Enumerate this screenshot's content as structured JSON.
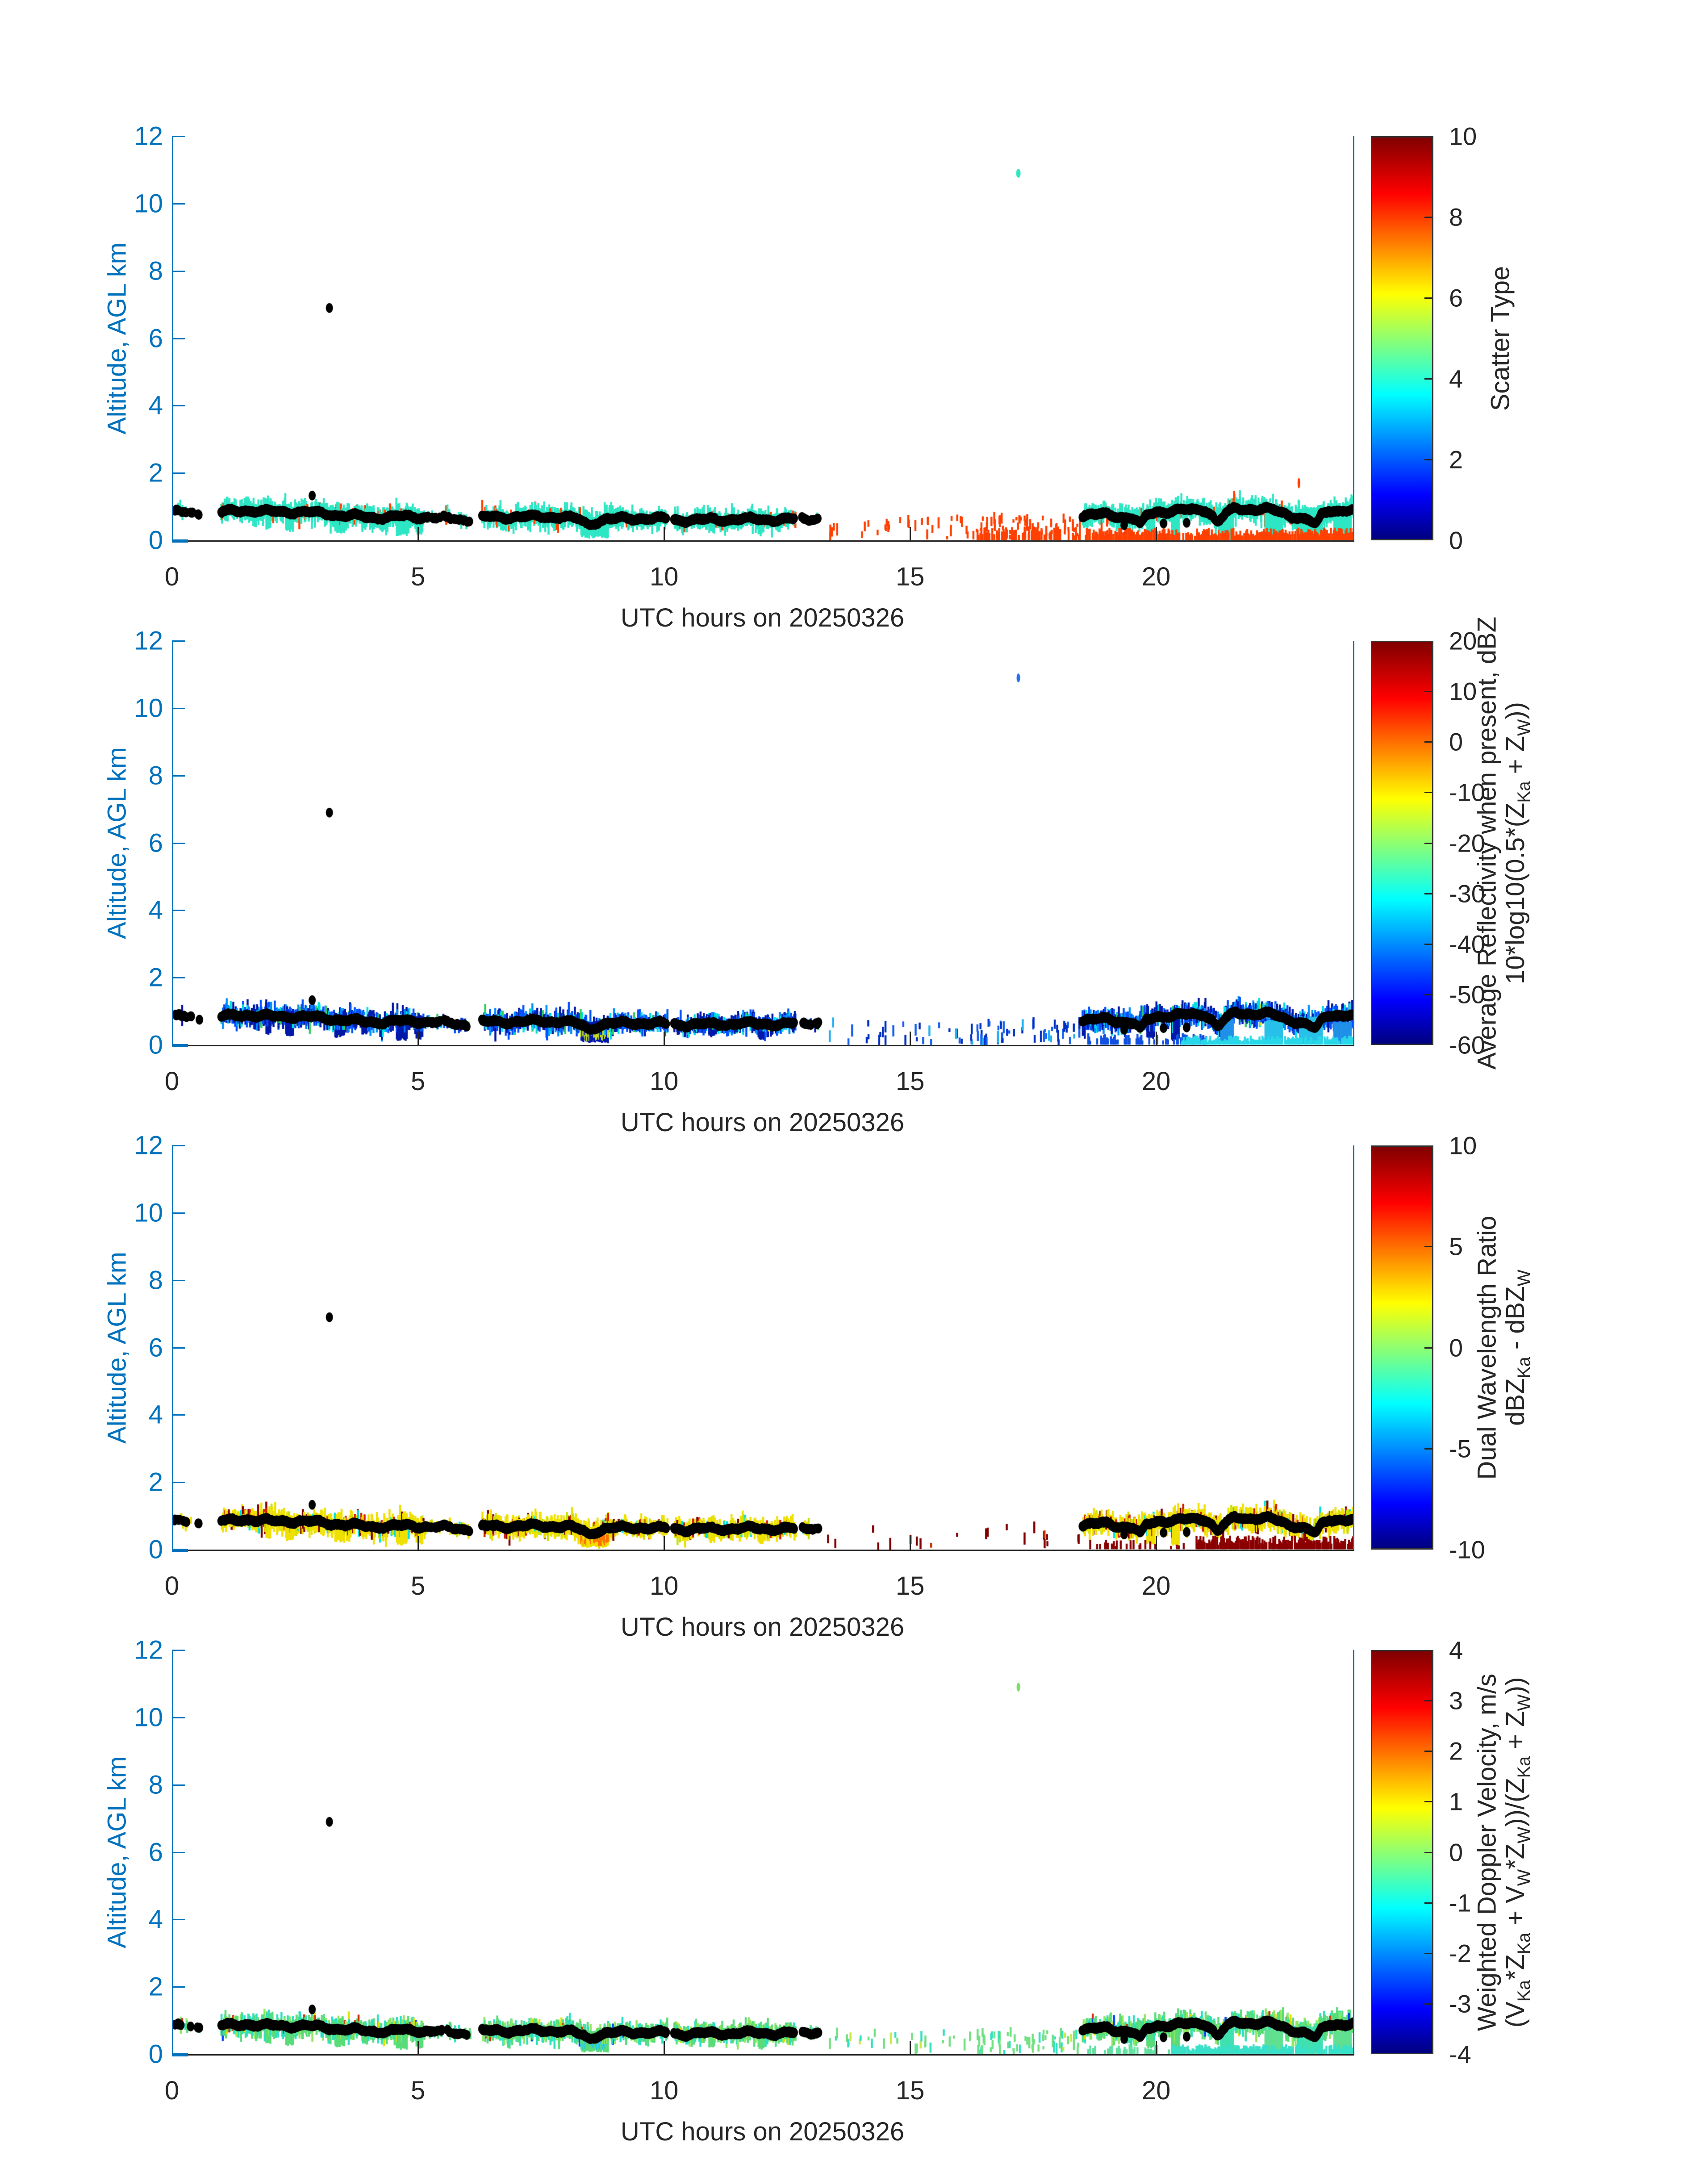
{
  "figure": {
    "background": "#ffffff",
    "title": ""
  },
  "colors": {
    "axis_blue": "#0072BD",
    "text_dark": "#262626",
    "jet_stops": [
      "#000080",
      "#0000FF",
      "#00FFFF",
      "#FFFF00",
      "#FF0000",
      "#800000"
    ]
  },
  "chart_data": [
    {
      "type": "scatter",
      "xlabel": "UTC hours on 20250326",
      "ylabel": "Altitude, AGL km",
      "xlim": [
        0,
        24
      ],
      "ylim": [
        0,
        12
      ],
      "x_ticks": [
        "0",
        "5",
        "10",
        "15",
        "20"
      ],
      "x_tick_values": [
        0,
        5,
        10,
        15,
        20
      ],
      "y_ticks": [
        "0",
        "2",
        "4",
        "6",
        "8",
        "10",
        "12"
      ],
      "y_tick_values": [
        0,
        2,
        4,
        6,
        8,
        10,
        12
      ],
      "grid": false,
      "colorbar": {
        "title_lines": [
          "Scatter Type"
        ],
        "min": 0,
        "max": 10,
        "ticks": [
          0,
          2,
          4,
          6,
          8,
          10
        ],
        "colormap": "jet"
      },
      "palette": [
        [
          "#2EE6C4",
          0.93
        ],
        [
          "#FF4000",
          0.07
        ]
      ],
      "sparse_palette": [
        [
          "#FF4000",
          1.0
        ]
      ],
      "sparse_density_scale": 1.2,
      "plume_core": null,
      "low_layers": [
        {
          "t0": 16.35,
          "t1": 18.45,
          "a0": 0,
          "a1": 0.42,
          "density": 0.5,
          "color": "#FF4000"
        },
        {
          "t0": 18.55,
          "t1": 24.0,
          "a0": 0,
          "a1": 0.38,
          "density": 0.8,
          "color": "#FF4000"
        }
      ],
      "tall_columns": [
        {
          "t0": 21.3,
          "t1": 21.55,
          "a1": 0.95,
          "color": "#2EE6C4"
        },
        {
          "t0": 22.2,
          "t1": 22.55,
          "a1": 0.85,
          "color": "#2EE6C4"
        },
        {
          "t0": 22.9,
          "t1": 23.35,
          "a1": 1.0,
          "color": "#2EE6C4"
        },
        {
          "t0": 23.6,
          "t1": 23.95,
          "a1": 0.8,
          "color": "#2EE6C4"
        }
      ],
      "outliers": [
        {
          "t": 3.2,
          "alt": 6.9,
          "color": "#000000",
          "rx": 8,
          "ry": 11
        },
        {
          "t": 17.2,
          "alt": 10.9,
          "color": "#2EE6C4",
          "rx": 5,
          "ry": 10
        },
        {
          "t": 2.85,
          "alt": 1.33,
          "color": "#000000",
          "rx": 8,
          "ry": 11
        },
        {
          "t": 22.9,
          "alt": 1.7,
          "color": "#FF4000",
          "rx": 3,
          "ry": 12
        }
      ]
    },
    {
      "type": "scatter",
      "xlabel": "UTC hours on 20250326",
      "ylabel": "Altitude, AGL km",
      "xlim": [
        0,
        24
      ],
      "ylim": [
        0,
        12
      ],
      "x_ticks": [
        "0",
        "5",
        "10",
        "15",
        "20"
      ],
      "x_tick_values": [
        0,
        5,
        10,
        15,
        20
      ],
      "y_ticks": [
        "0",
        "2",
        "4",
        "6",
        "8",
        "10",
        "12"
      ],
      "y_tick_values": [
        0,
        2,
        4,
        6,
        8,
        10,
        12
      ],
      "grid": false,
      "colorbar": {
        "title_lines": [
          "Average Reflectivity when present, dBZ",
          "10*log10(0.5*(Z_{Ka} + Z_{W}))"
        ],
        "min": -60,
        "max": 20,
        "ticks": [
          -60,
          -50,
          -40,
          -30,
          -20,
          -10,
          0,
          10,
          20
        ],
        "colormap": "jet"
      },
      "palette": [
        [
          "#0018A8",
          0.34
        ],
        [
          "#0050FF",
          0.3
        ],
        [
          "#0090FF",
          0.15
        ],
        [
          "#00E0E0",
          0.15
        ],
        [
          "#30D060",
          0.05
        ],
        [
          "#C8E020",
          0.01
        ]
      ],
      "sparse_palette": [
        [
          "#0030C0",
          0.5
        ],
        [
          "#1560F0",
          0.3
        ],
        [
          "#20B0F0",
          0.2
        ]
      ],
      "sparse_density_scale": 1.0,
      "plume_core": "#C8E020",
      "low_layers": [
        {
          "t0": 18.6,
          "t1": 21.0,
          "a0": 0,
          "a1": 0.35,
          "density": 0.5,
          "color": "#1050E0"
        },
        {
          "t0": 20.5,
          "t1": 24.0,
          "a0": 0,
          "a1": 0.28,
          "density": 0.85,
          "color": "#28D8E8"
        }
      ],
      "tall_columns": [
        {
          "t0": 21.3,
          "t1": 21.55,
          "a1": 0.8,
          "color": "#2090E8"
        },
        {
          "t0": 22.2,
          "t1": 22.55,
          "a1": 0.75,
          "color": "#28C0E8"
        },
        {
          "t0": 22.9,
          "t1": 23.35,
          "a1": 0.85,
          "color": "#28C0E8"
        },
        {
          "t0": 23.6,
          "t1": 23.95,
          "a1": 0.7,
          "color": "#2090E8"
        }
      ],
      "outliers": [
        {
          "t": 3.2,
          "alt": 6.9,
          "color": "#000000",
          "rx": 8,
          "ry": 11
        },
        {
          "t": 17.2,
          "alt": 10.9,
          "color": "#2070F0",
          "rx": 4,
          "ry": 10
        },
        {
          "t": 2.85,
          "alt": 1.33,
          "color": "#000000",
          "rx": 8,
          "ry": 11
        }
      ]
    },
    {
      "type": "scatter",
      "xlabel": "UTC hours on 20250326",
      "ylabel": "Altitude, AGL km",
      "xlim": [
        0,
        24
      ],
      "ylim": [
        0,
        12
      ],
      "x_ticks": [
        "0",
        "5",
        "10",
        "15",
        "20"
      ],
      "x_tick_values": [
        0,
        5,
        10,
        15,
        20
      ],
      "y_ticks": [
        "0",
        "2",
        "4",
        "6",
        "8",
        "10",
        "12"
      ],
      "y_tick_values": [
        0,
        2,
        4,
        6,
        8,
        10,
        12
      ],
      "grid": false,
      "colorbar": {
        "title_lines": [
          "Dual Wavelength Ratio",
          "dBZ_{Ka} - dBZ_{W}"
        ],
        "min": -10,
        "max": 10,
        "ticks": [
          -10,
          -5,
          0,
          5,
          10
        ],
        "colormap": "jet"
      },
      "palette": [
        [
          "#F0E000",
          0.72
        ],
        [
          "#C8E000",
          0.1
        ],
        [
          "#00E0E0",
          0.06
        ],
        [
          "#D02000",
          0.06
        ],
        [
          "#800000",
          0.06
        ]
      ],
      "sparse_palette": [
        [
          "#800000",
          0.85
        ],
        [
          "#C83000",
          0.15
        ]
      ],
      "sparse_density_scale": 0.35,
      "plume_core": "#FF7000",
      "low_layers": [
        {
          "t0": 18.6,
          "t1": 20.8,
          "a0": 0,
          "a1": 0.3,
          "density": 0.25,
          "color": "#8B0000"
        },
        {
          "t0": 20.8,
          "t1": 24.0,
          "a0": 0,
          "a1": 0.42,
          "density": 0.85,
          "color": "#8B0000"
        }
      ],
      "tall_columns": [],
      "outliers": [
        {
          "t": 3.2,
          "alt": 6.9,
          "color": "#000000",
          "rx": 8,
          "ry": 11
        },
        {
          "t": 2.85,
          "alt": 1.33,
          "color": "#000000",
          "rx": 8,
          "ry": 11
        }
      ]
    },
    {
      "type": "scatter",
      "xlabel": "UTC hours on 20250326",
      "ylabel": "Altitude, AGL km",
      "xlim": [
        0,
        24
      ],
      "ylim": [
        0,
        12
      ],
      "x_ticks": [
        "0",
        "5",
        "10",
        "15",
        "20"
      ],
      "x_tick_values": [
        0,
        5,
        10,
        15,
        20
      ],
      "y_ticks": [
        "0",
        "2",
        "4",
        "6",
        "8",
        "10",
        "12"
      ],
      "y_tick_values": [
        0,
        2,
        4,
        6,
        8,
        10,
        12
      ],
      "grid": false,
      "colorbar": {
        "title_lines": [
          "Weighted Doppler Velocity, m/s",
          "(V_{Ka}*Z_{Ka} + V_{W}*Z_{W}))/(Z_{Ka} + Z_{W}))"
        ],
        "min": -4,
        "max": 4,
        "ticks": [
          -4,
          -3,
          -2,
          -1,
          0,
          1,
          2,
          3,
          4
        ],
        "colormap": "jet"
      },
      "palette": [
        [
          "#58DC78",
          0.45
        ],
        [
          "#90E860",
          0.2
        ],
        [
          "#28E0C0",
          0.28
        ],
        [
          "#E0E000",
          0.04
        ],
        [
          "#D03000",
          0.02
        ],
        [
          "#0040FF",
          0.01
        ]
      ],
      "sparse_palette": [
        [
          "#70E080",
          0.6
        ],
        [
          "#30E0C0",
          0.3
        ],
        [
          "#C8E840",
          0.1
        ]
      ],
      "sparse_density_scale": 1.0,
      "plume_core": "#28C8E8",
      "low_layers": [
        {
          "t0": 18.6,
          "t1": 20.3,
          "a0": 0,
          "a1": 0.3,
          "density": 0.35,
          "color": "#60E0A0"
        },
        {
          "t0": 20.3,
          "t1": 24.0,
          "a0": 0,
          "a1": 0.3,
          "density": 0.85,
          "color": "#38E0C8"
        }
      ],
      "tall_columns": [
        {
          "t0": 21.3,
          "t1": 21.55,
          "a1": 0.8,
          "color": "#40E0B0"
        },
        {
          "t0": 22.2,
          "t1": 22.55,
          "a1": 0.75,
          "color": "#60E090"
        },
        {
          "t0": 22.9,
          "t1": 23.35,
          "a1": 0.85,
          "color": "#40E0B0"
        },
        {
          "t0": 23.6,
          "t1": 23.95,
          "a1": 0.7,
          "color": "#60E090"
        }
      ],
      "outliers": [
        {
          "t": 3.2,
          "alt": 6.9,
          "color": "#000000",
          "rx": 8,
          "ry": 11
        },
        {
          "t": 17.2,
          "alt": 10.9,
          "color": "#78E060",
          "rx": 4,
          "ry": 10
        },
        {
          "t": 2.85,
          "alt": 1.33,
          "color": "#000000",
          "rx": 8,
          "ry": 11
        }
      ]
    }
  ],
  "shared_data": {
    "centerline": [
      [
        0.05,
        0.85
      ],
      [
        0.5,
        0.8
      ],
      [
        1.0,
        0.83
      ],
      [
        1.5,
        0.9
      ],
      [
        2.0,
        0.84
      ],
      [
        2.6,
        0.85
      ],
      [
        3.2,
        0.78
      ],
      [
        4.0,
        0.68
      ],
      [
        4.6,
        0.7
      ],
      [
        5.1,
        0.7
      ],
      [
        5.6,
        0.65
      ],
      [
        6.05,
        0.6
      ],
      [
        6.3,
        0.68
      ],
      [
        7.0,
        0.7
      ],
      [
        8.0,
        0.7
      ],
      [
        8.5,
        0.52
      ],
      [
        8.8,
        0.62
      ],
      [
        9.5,
        0.66
      ],
      [
        10.5,
        0.6
      ],
      [
        11.5,
        0.63
      ],
      [
        12.65,
        0.62
      ],
      [
        13.0,
        0.66
      ],
      [
        18.5,
        0.72
      ],
      [
        19.0,
        0.78
      ],
      [
        19.6,
        0.62
      ],
      [
        20.0,
        0.85
      ],
      [
        20.5,
        0.88
      ],
      [
        21.0,
        0.92
      ],
      [
        21.25,
        0.6
      ],
      [
        21.6,
        0.95
      ],
      [
        22.3,
        0.92
      ],
      [
        23.2,
        0.55
      ],
      [
        23.5,
        0.9
      ],
      [
        24.0,
        0.88
      ]
    ],
    "band_segments": [
      [
        0.05,
        0.3,
        0.12,
        0.25,
        ""
      ],
      [
        0.38,
        0.42,
        0.05,
        0.15,
        ""
      ],
      [
        0.52,
        0.56,
        0.05,
        0.15,
        ""
      ],
      [
        1.0,
        2.6,
        0.3,
        1,
        ""
      ],
      [
        2.6,
        4.1,
        0.28,
        1,
        ""
      ],
      [
        4.15,
        5.1,
        0.3,
        0.9,
        ""
      ],
      [
        5.1,
        6.05,
        0.1,
        0.3,
        ""
      ],
      [
        6.3,
        9.0,
        0.3,
        1,
        ""
      ],
      [
        9.0,
        10.05,
        0.17,
        0.7,
        ""
      ],
      [
        10.2,
        12.65,
        0.22,
        0.8,
        ""
      ],
      [
        12.8,
        13.15,
        0.08,
        0.2,
        ""
      ],
      [
        13.3,
        16.3,
        0.3,
        0.1,
        "sparse"
      ],
      [
        16.3,
        18.45,
        0.35,
        0.28,
        "sparse"
      ],
      [
        18.5,
        20.9,
        0.28,
        1,
        ""
      ],
      [
        20.9,
        24.0,
        0.33,
        1,
        ""
      ]
    ],
    "plumes": [
      [
        1.9,
        2.0,
        0.3
      ],
      [
        2.3,
        2.45,
        0.25
      ],
      [
        3.3,
        3.5,
        0.2
      ],
      [
        3.85,
        3.95,
        0.3
      ],
      [
        4.55,
        4.75,
        0.12
      ],
      [
        4.95,
        5.08,
        0.15
      ],
      [
        8.3,
        8.85,
        0.05
      ],
      [
        10.9,
        11.0,
        0.2
      ],
      [
        11.9,
        12.0,
        0.15
      ],
      [
        19.8,
        19.95,
        0.15
      ],
      [
        20.3,
        20.45,
        0.1
      ]
    ],
    "line_segments": [
      [
        0.05,
        0.3
      ],
      [
        0.38,
        0.42
      ],
      [
        0.52,
        0.56
      ],
      [
        1.0,
        6.05
      ],
      [
        6.3,
        10.05
      ],
      [
        10.2,
        12.65
      ],
      [
        12.8,
        13.15
      ],
      [
        18.5,
        24.0
      ]
    ],
    "line_thin": [
      [
        0.05,
        0.6
      ],
      [
        5.2,
        6.05
      ],
      [
        12.8,
        13.15
      ]
    ],
    "line_dips": [
      [
        8.35,
        8.65,
        0.45
      ],
      [
        19.55,
        19.8,
        0.5
      ],
      [
        21.15,
        21.35,
        0.55
      ],
      [
        23.1,
        23.35,
        0.5
      ]
    ],
    "line_extra_dots": [
      [
        19.35,
        0.45
      ],
      [
        20.15,
        0.5
      ],
      [
        20.62,
        0.52
      ]
    ]
  }
}
